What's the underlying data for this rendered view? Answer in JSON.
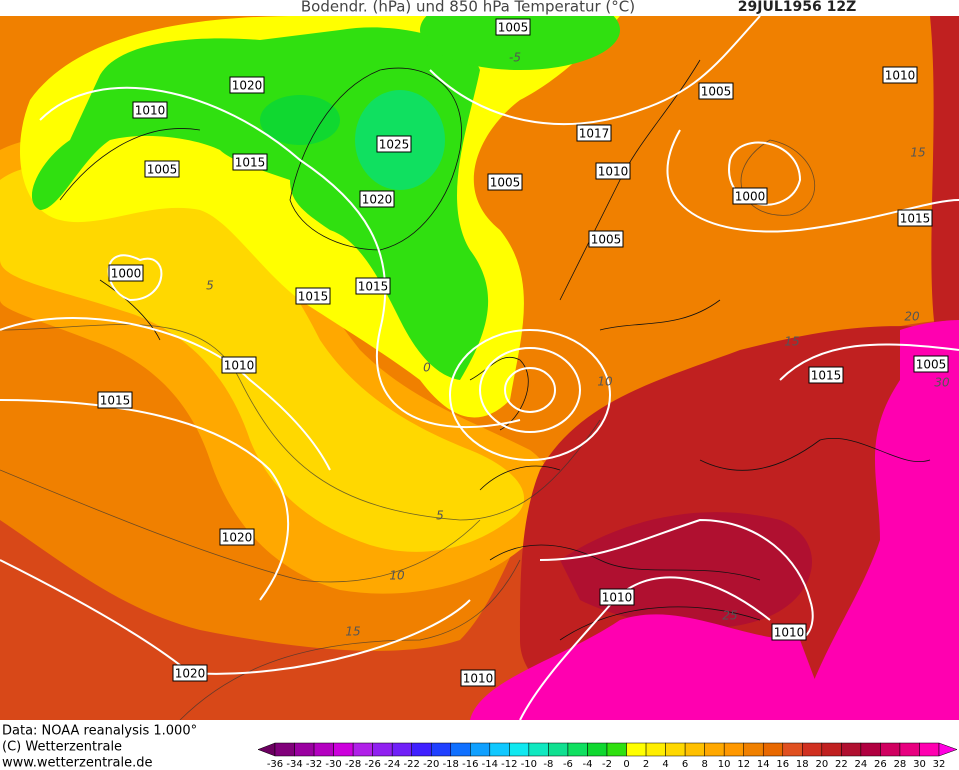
{
  "header": {
    "title": "Bodendr. (hPa) und 850 hPa Temperatur (°C)",
    "date": "29JUL1956 12Z"
  },
  "map": {
    "isobar_labels": [
      "1005",
      "1020",
      "1010",
      "1015",
      "1005",
      "1025",
      "1020",
      "1005",
      "1017",
      "1010",
      "1005",
      "1010",
      "1000",
      "1015",
      "1005",
      "1000",
      "1015",
      "1015",
      "1010",
      "1015",
      "1015",
      "1005",
      "1020",
      "1010",
      "1010",
      "1020",
      "1010"
    ],
    "temperature_labels": [
      -5,
      5,
      0,
      10,
      15,
      20,
      15,
      30,
      5,
      10,
      15,
      25
    ]
  },
  "footer": {
    "lines": [
      "Data: NOAA reanalysis 1.000°",
      "(C) Wetterzentrale",
      "www.wetterzentrale.de"
    ]
  },
  "colorbar": {
    "ticks": [
      -36,
      -34,
      -32,
      -30,
      -28,
      -26,
      -24,
      -22,
      -20,
      -18,
      -16,
      -14,
      -12,
      -10,
      -8,
      -6,
      -4,
      -2,
      0,
      2,
      4,
      6,
      8,
      10,
      12,
      14,
      16,
      18,
      20,
      22,
      24,
      26,
      28,
      30,
      32
    ],
    "colors": [
      "#6b0060",
      "#80007a",
      "#9a00a0",
      "#b400c0",
      "#cc00dc",
      "#b020e8",
      "#9020f0",
      "#7020f8",
      "#4020ff",
      "#2040ff",
      "#1070ff",
      "#10a0ff",
      "#10c8ff",
      "#10e8f0",
      "#10e8c0",
      "#10e090",
      "#10e060",
      "#10d830",
      "#30e010",
      "#ffff00",
      "#ffee00",
      "#ffd800",
      "#ffc000",
      "#ffa800",
      "#ff9800",
      "#f08000",
      "#e86800",
      "#e05020",
      "#d03020",
      "#c02020",
      "#b01030",
      "#b00040",
      "#d00060",
      "#e80080",
      "#ff00b0",
      "#ff00e0"
    ]
  }
}
